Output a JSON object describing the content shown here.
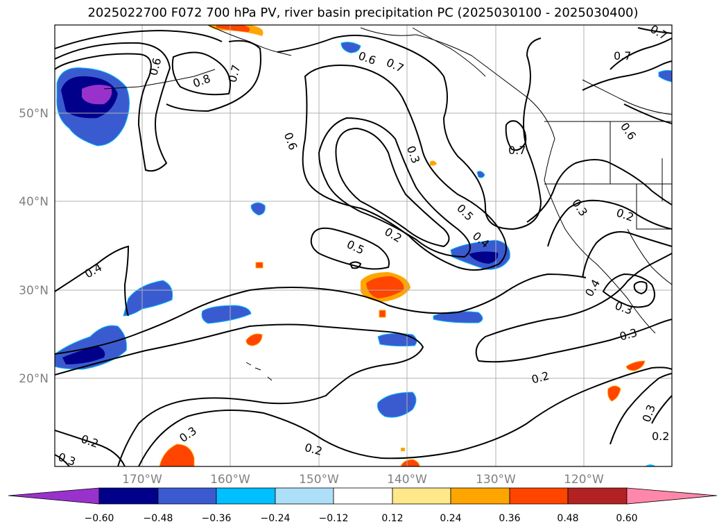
{
  "title": "2025022700 F072 700 hPa PV, river basin precipitation PC (2025030100 - 2025030400)",
  "lat_labels": [
    "50°N",
    "40°N",
    "30°N",
    "20°N"
  ],
  "lon_labels": [
    "170°W",
    "160°W",
    "150°W",
    "140°W",
    "130°W",
    "120°W"
  ],
  "colorbar": {
    "ticks": [
      "−0.60",
      "−0.48",
      "−0.36",
      "−0.24",
      "−0.12",
      "0.12",
      "0.24",
      "0.36",
      "0.48",
      "0.60"
    ],
    "colors": [
      "#9932CC",
      "#00008B",
      "#3A5BD0",
      "#00BFFF",
      "#ADE0F8",
      "#FFFFFF",
      "#FFE88A",
      "#FFA500",
      "#FF4500",
      "#B22222",
      "#FF88AA"
    ]
  },
  "contour_labels": [
    "0.6",
    "0.8",
    "0.7",
    "0.6",
    "0.7",
    "0.7",
    "0.7",
    "0.6",
    "0.7",
    "0.6",
    "0.3",
    "0.5",
    "0.2",
    "0.5",
    "0.4",
    "0.4",
    "0.3",
    "0.2",
    "0.4",
    "0.3",
    "0.3",
    "0.2",
    "0.3",
    "0.2",
    "0.2",
    "0.3",
    "0.3",
    "0.2"
  ]
}
